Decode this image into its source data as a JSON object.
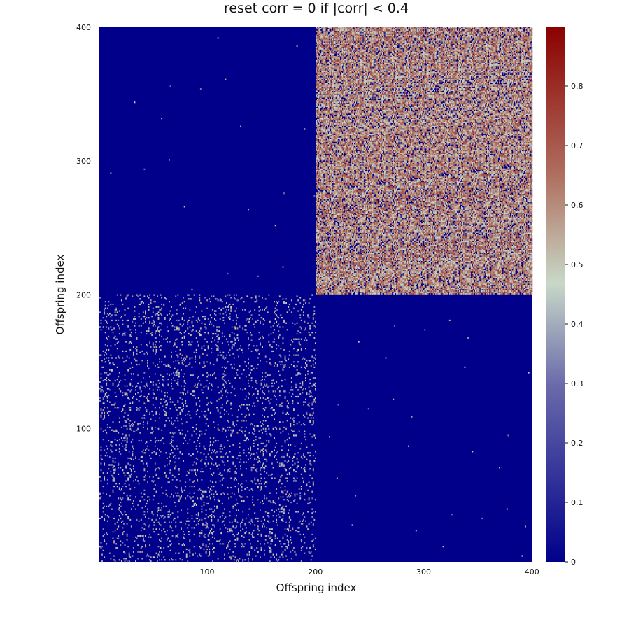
{
  "chart_data": {
    "type": "heatmap",
    "title": "reset corr = 0 if |corr| < 0.4",
    "xlabel": "Offspring index",
    "ylabel": "Offspring index",
    "xlim": [
      1,
      400
    ],
    "ylim": [
      1,
      400
    ],
    "x_ticks": [
      100,
      200,
      300,
      400
    ],
    "y_ticks": [
      100,
      200,
      300,
      400
    ],
    "color_range": [
      0,
      0.9
    ],
    "colorbar_ticks": [
      0,
      0.1,
      0.2,
      0.3,
      0.4,
      0.5,
      0.6,
      0.7,
      0.8
    ],
    "colormap": [
      "#00008b",
      "#c8d8c8",
      "#8b0000"
    ],
    "grid": false,
    "blocks": [
      {
        "x_range": [
          1,
          200
        ],
        "y_range": [
          201,
          400
        ],
        "description": "near zero, very sparse",
        "density": 0.0003,
        "typical_value": 0.45
      },
      {
        "x_range": [
          201,
          400
        ],
        "y_range": [
          201,
          400
        ],
        "description": "dense correlations",
        "density": 0.8,
        "typical_value": 0.6
      },
      {
        "x_range": [
          1,
          200
        ],
        "y_range": [
          1,
          200
        ],
        "description": "sparse correlations",
        "density": 0.08,
        "typical_value": 0.45
      },
      {
        "x_range": [
          201,
          400
        ],
        "y_range": [
          1,
          200
        ],
        "description": "near zero, very sparse",
        "density": 0.0004,
        "typical_value": 0.45
      }
    ]
  }
}
